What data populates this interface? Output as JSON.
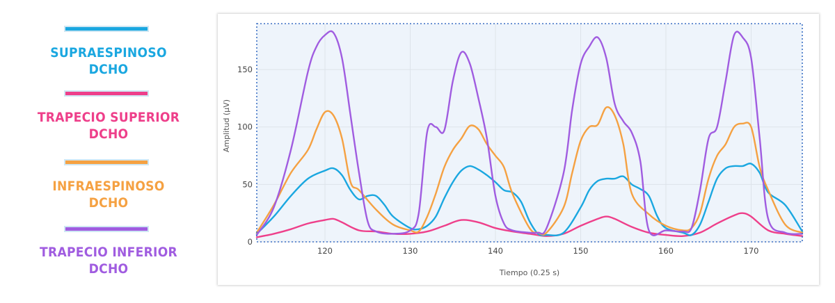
{
  "legend": [
    {
      "lines": [
        "SUPRAESPINOSO",
        "DCHO"
      ],
      "color": "#1aa7e0"
    },
    {
      "lines": [
        "TRAPECIO SUPERIOR",
        "DCHO"
      ],
      "color": "#ee3f8a"
    },
    {
      "lines": [
        "INFRAESPINOSO",
        "DCHO"
      ],
      "color": "#f5a142"
    },
    {
      "lines": [
        "TRAPECIO INFERIOR",
        "DCHO"
      ],
      "color": "#a05ce0"
    }
  ],
  "chart_data": {
    "type": "line",
    "title": "",
    "xlabel": "Tiempo (0.25 s)",
    "ylabel": "Amplitud (µV)",
    "xlim": [
      112,
      176
    ],
    "ylim": [
      0,
      190
    ],
    "xticks": [
      120,
      130,
      140,
      150,
      160,
      170
    ],
    "yticks": [
      0,
      50,
      100,
      150
    ],
    "grid": true,
    "series": [
      {
        "name": "SUPRAESPINOSO DCHO",
        "color": "#1aa7e0",
        "x": [
          112,
          114,
          116,
          118,
          120,
          121,
          122,
          123,
          124,
          125,
          126,
          127,
          128,
          130,
          131,
          132,
          133,
          134,
          135,
          136,
          137,
          138,
          139,
          140,
          141,
          142,
          143,
          144,
          145,
          146,
          148,
          150,
          151,
          152,
          153,
          154,
          155,
          156,
          157,
          158,
          159,
          160,
          162,
          163,
          164,
          165,
          166,
          167,
          168,
          169,
          170,
          171,
          172,
          174,
          176
        ],
        "y": [
          7,
          22,
          40,
          55,
          62,
          64,
          58,
          45,
          37,
          40,
          40,
          32,
          22,
          12,
          11,
          14,
          22,
          38,
          52,
          62,
          66,
          63,
          58,
          52,
          45,
          43,
          35,
          18,
          7,
          6,
          8,
          30,
          45,
          53,
          55,
          55,
          57,
          50,
          46,
          40,
          22,
          12,
          8,
          6,
          15,
          35,
          55,
          64,
          66,
          66,
          68,
          60,
          43,
          32,
          9
        ]
      },
      {
        "name": "TRAPECIO SUPERIOR DCHO",
        "color": "#ee3f8a",
        "x": [
          112,
          114,
          116,
          118,
          120,
          121,
          122,
          124,
          126,
          128,
          130,
          132,
          134,
          136,
          138,
          140,
          142,
          144,
          146,
          148,
          150,
          152,
          153,
          154,
          156,
          158,
          160,
          162,
          164,
          166,
          168,
          169,
          170,
          172,
          174,
          176
        ],
        "y": [
          4,
          7,
          11,
          16,
          19,
          20,
          17,
          10,
          9,
          7,
          7,
          9,
          14,
          19,
          17,
          12,
          9,
          7,
          5,
          7,
          14,
          20,
          22,
          20,
          13,
          8,
          6,
          5,
          8,
          16,
          23,
          25,
          22,
          10,
          7,
          5
        ]
      },
      {
        "name": "INFRAESPINOSO DCHO",
        "color": "#f5a142",
        "x": [
          112,
          114,
          116,
          118,
          119,
          120,
          121,
          122,
          123,
          124,
          126,
          128,
          130,
          131,
          132,
          133,
          134,
          135,
          136,
          137,
          138,
          139,
          140,
          141,
          142,
          144,
          145,
          146,
          148,
          149,
          150,
          151,
          152,
          153,
          154,
          155,
          156,
          158,
          160,
          162,
          163,
          164,
          165,
          166,
          167,
          168,
          169,
          170,
          171,
          172,
          174,
          176
        ],
        "y": [
          8,
          32,
          60,
          80,
          98,
          113,
          110,
          90,
          52,
          45,
          28,
          15,
          10,
          9,
          22,
          42,
          65,
          80,
          90,
          101,
          98,
          85,
          75,
          65,
          42,
          12,
          8,
          8,
          30,
          60,
          88,
          100,
          102,
          117,
          110,
          85,
          42,
          24,
          14,
          10,
          12,
          25,
          55,
          75,
          85,
          100,
          103,
          100,
          65,
          45,
          15,
          8
        ],
        "x_note": ""
      },
      {
        "name": "TRAPECIO INFERIOR DCHO",
        "color": "#a05ce0",
        "x": [
          112,
          114,
          116,
          118,
          119,
          120,
          121,
          122,
          123,
          124,
          125,
          126,
          128,
          130,
          131,
          132,
          133,
          134,
          135,
          136,
          137,
          138,
          139,
          140,
          141,
          142,
          144,
          145,
          146,
          148,
          149,
          150,
          151,
          152,
          153,
          154,
          155,
          156,
          157,
          158,
          160,
          162,
          163,
          164,
          165,
          166,
          167,
          168,
          169,
          170,
          171,
          172,
          174,
          176
        ],
        "y": [
          6,
          30,
          80,
          148,
          170,
          180,
          182,
          160,
          110,
          60,
          18,
          9,
          7,
          10,
          25,
          96,
          100,
          97,
          140,
          165,
          155,
          125,
          90,
          40,
          16,
          10,
          8,
          8,
          12,
          60,
          115,
          155,
          170,
          178,
          160,
          120,
          105,
          95,
          70,
          10,
          10,
          9,
          12,
          45,
          90,
          100,
          140,
          180,
          178,
          160,
          90,
          20,
          8,
          7
        ]
      }
    ]
  }
}
